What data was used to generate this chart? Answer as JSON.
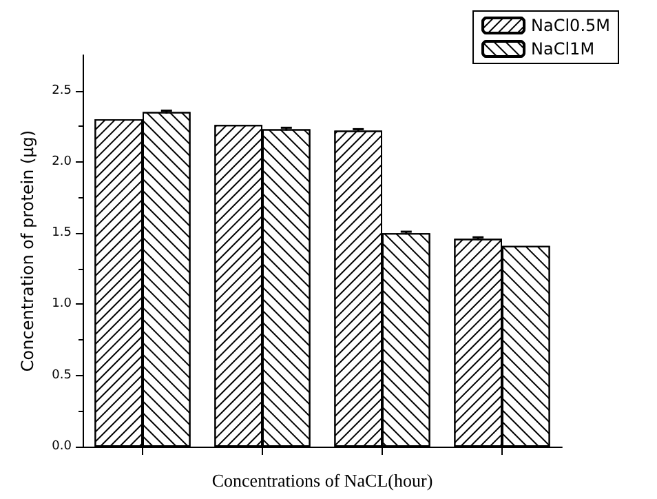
{
  "chart_data": {
    "type": "bar",
    "xlabel": "Concentrations of NaCL(hour)",
    "ylabel": "Concentration of protein (µg)",
    "categories": [
      null,
      null,
      null,
      null
    ],
    "series": [
      {
        "name": "NaCl0.5M",
        "color": "#ffffff",
        "values": [
          2.3,
          2.26,
          2.22,
          1.46
        ],
        "errors": [
          null,
          null,
          0.01,
          0.01
        ]
      },
      {
        "name": "NaCl1M",
        "color": "#ffffff",
        "values": [
          2.35,
          2.23,
          1.5,
          1.41
        ],
        "errors": [
          0.01,
          0.01,
          0.01,
          null
        ]
      }
    ],
    "ylim": [
      0,
      2.75
    ],
    "yticks": [
      {
        "value": 0,
        "label": "0.0"
      },
      0.5,
      {
        "value": 1,
        "label": "1.0"
      },
      1.5,
      {
        "value": 2,
        "label": "2.0"
      },
      2.5
    ],
    "grid": false,
    "legend": "top right"
  }
}
